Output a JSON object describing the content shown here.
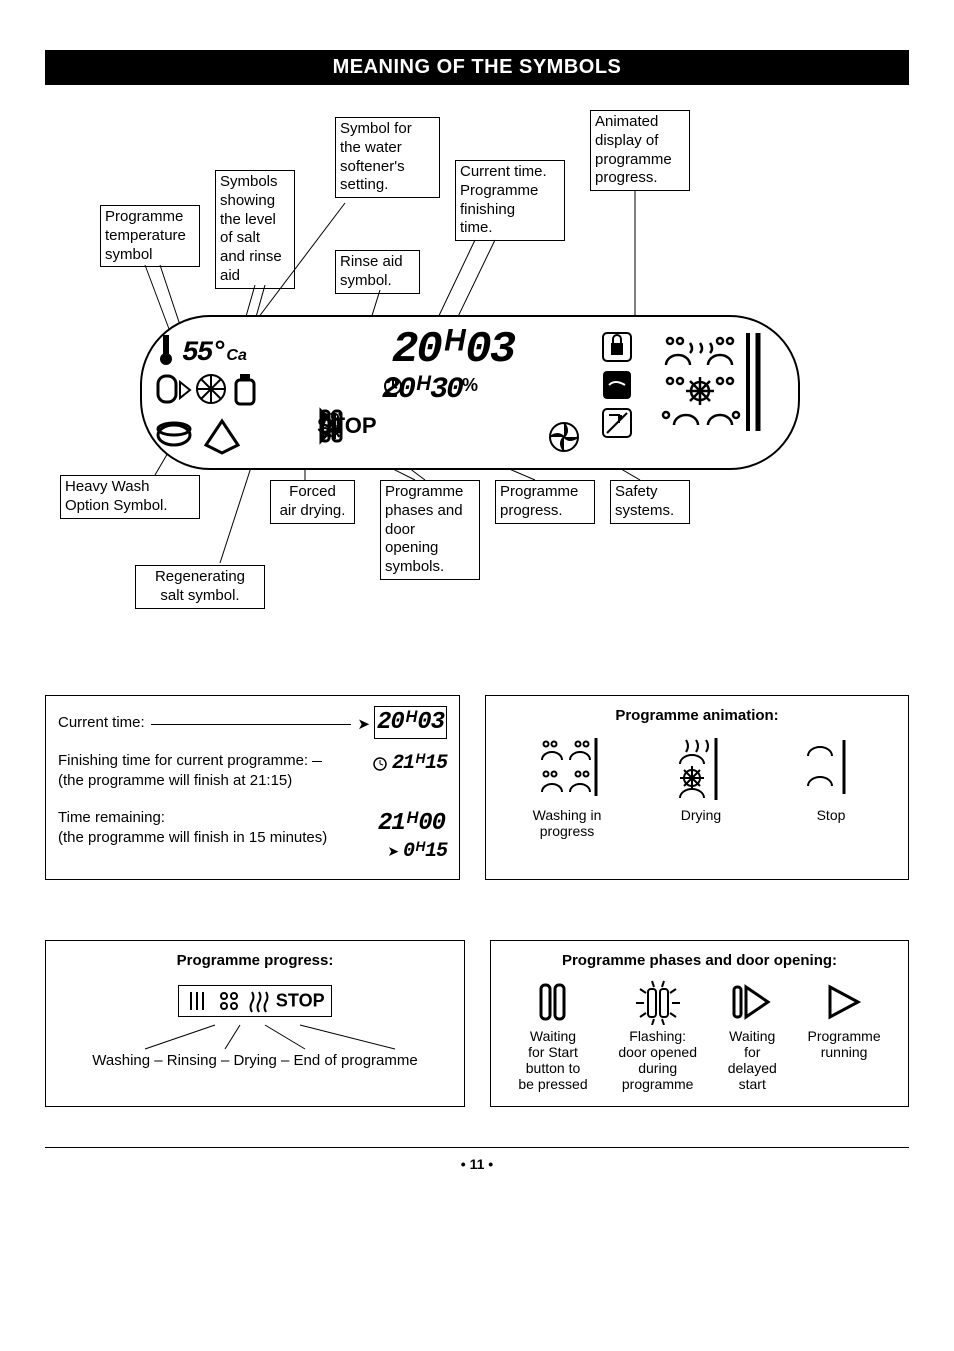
{
  "title": "MEANING OF THE SYMBOLS",
  "pageNumber": "• 11 •",
  "topLabels": {
    "tempSymbol": "Programme\ntemperature\nsymbol",
    "saltRinse": "Symbols\nshowing\nthe level\nof salt\nand rinse\naid",
    "softener": "Symbol for\nthe water\nsoftener's\nsetting.",
    "rinseAid": "Rinse aid\nsymbol.",
    "currentTime": "Current time.\nProgramme\nfinishing\ntime.",
    "animDisplay": "Animated\ndisplay of\nprogramme\nprogress.",
    "heavyWash": "Heavy Wash\nOption Symbol.",
    "forcedAir": "Forced\nair drying.",
    "phases": "Programme\nphases and\ndoor\nopening\nsymbols.",
    "progress": "Programme\nprogress.",
    "safety": "Safety\nsystems.",
    "regenSalt": "Regenerating\nsalt symbol."
  },
  "display": {
    "temp": "55°",
    "tempUnit": "Ca",
    "timeMain": "20ᴴ03",
    "timeSub": "20ᴴ30",
    "stopText": "STOP"
  },
  "timePanel": {
    "currentLabel": "Current time:",
    "currentVal": "20ᴴ03",
    "finishLabel": "Finishing time for current programme:",
    "finishNote": "(the programme will finish at 21:15)",
    "finishVal": "21ᴴ15",
    "remainLabel": "Time remaining:",
    "remainNote": "(the programme will finish in 15 minutes)",
    "remainTop": "21ᴴ00",
    "remainBottom": "0ᴴ15"
  },
  "animPanel": {
    "heading": "Programme animation:",
    "items": [
      "Washing in\nprogress",
      "Drying",
      "Stop"
    ]
  },
  "progressPanel": {
    "heading": "Programme progress:",
    "sequence": "Washing – Rinsing – Drying – End of programme",
    "stopText": "STOP"
  },
  "phasesPanel": {
    "heading": "Programme phases and door opening:",
    "items": [
      "Waiting\nfor Start\nbutton to\nbe pressed",
      "Flashing:\ndoor opened\nduring\nprogramme",
      "Waiting\nfor\ndelayed\nstart",
      "Programme\nrunning"
    ]
  }
}
